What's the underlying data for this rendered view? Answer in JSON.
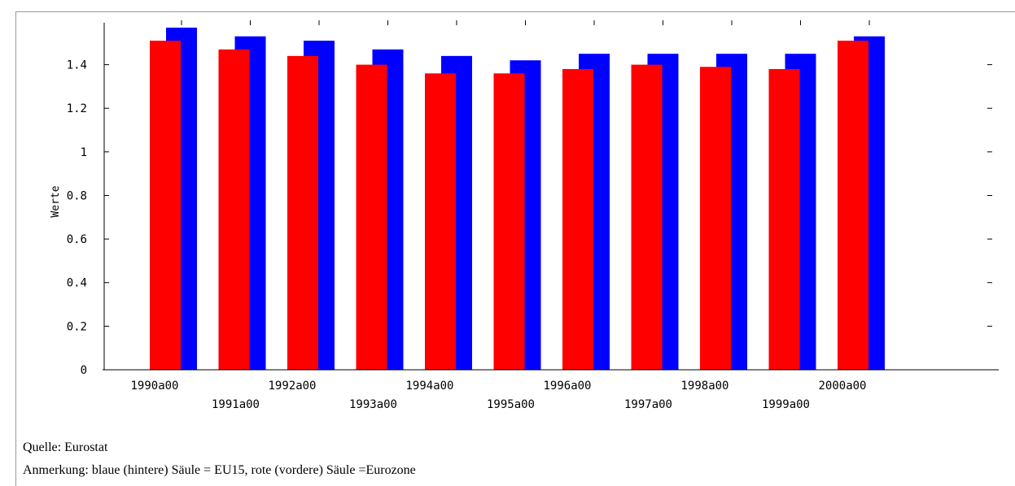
{
  "chart_data": {
    "type": "bar",
    "categories": [
      "1990a00",
      "1991a00",
      "1992a00",
      "1993a00",
      "1994a00",
      "1995a00",
      "1996a00",
      "1997a00",
      "1998a00",
      "1999a00",
      "2000a00"
    ],
    "series": [
      {
        "values": [
          1.51,
          1.47,
          1.44,
          1.4,
          1.36,
          1.36,
          1.38,
          1.4,
          1.39,
          1.38,
          1.51
        ],
        "color": "#ff0000"
      },
      {
        "values": [
          1.57,
          1.53,
          1.51,
          1.47,
          1.44,
          1.42,
          1.45,
          1.45,
          1.45,
          1.45,
          1.53
        ],
        "color": "#0000ff"
      }
    ],
    "ylabel": "Werte",
    "ylim": [
      0,
      1.57
    ],
    "yticks": [
      0,
      0.2,
      0.4,
      0.6,
      0.8,
      1,
      1.2,
      1.4
    ],
    "ytick_labels": [
      "0",
      "0.2",
      "0.4",
      "0.6",
      "0.8",
      "1",
      "1.2",
      "1.4"
    ],
    "grid": false,
    "legend": "none"
  },
  "notes": {
    "source": "Quelle: Eurostat",
    "remark": "Anmerkung: blaue (hintere) Säule = EU15, rote (vordere) Säule =Eurozone"
  }
}
